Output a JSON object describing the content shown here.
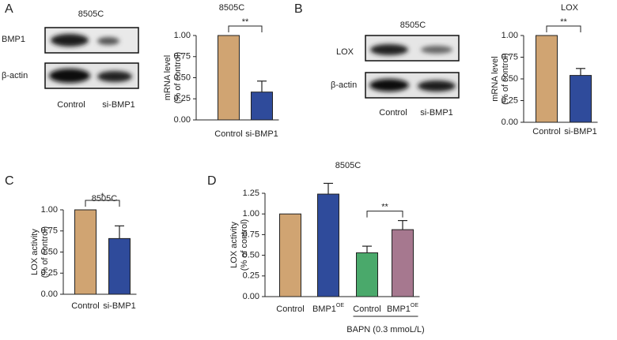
{
  "blots": [
    {
      "title": "8505C",
      "rows": [
        "BMP1",
        "β-actin"
      ],
      "lanes": [
        "Control",
        "si-BMP1"
      ]
    },
    {
      "title": "8505C",
      "rows": [
        "LOX",
        "β-actin"
      ],
      "lanes": [
        "Control",
        "si-BMP1"
      ]
    }
  ],
  "chart_data": [
    {
      "type": "bar",
      "panel": "A",
      "title": "8505C",
      "ylabel": [
        "mRNA level",
        "(% of control)"
      ],
      "categories": [
        "Control",
        "si-BMP1"
      ],
      "values": [
        1.0,
        0.33
      ],
      "errors": [
        0,
        0.13
      ],
      "colors": [
        "#d0a472",
        "#2f4b9b"
      ],
      "ylim": [
        0,
        1.0
      ],
      "yticks": [
        {
          "value": 0,
          "label": "0.00"
        },
        {
          "value": 0.25,
          "label": "0.25"
        },
        {
          "value": 0.5,
          "label": "0.50"
        },
        {
          "value": 0.75,
          "label": "0.75"
        },
        {
          "value": 1.0,
          "label": "1.00"
        }
      ],
      "significance": "**"
    },
    {
      "type": "bar",
      "panel": "B",
      "title": "LOX",
      "ylabel": [
        "mRNA level",
        "(% of control)"
      ],
      "categories": [
        "Control",
        "si-BMP1"
      ],
      "values": [
        1.0,
        0.54
      ],
      "errors": [
        0,
        0.08
      ],
      "colors": [
        "#d0a472",
        "#2f4b9b"
      ],
      "ylim": [
        0,
        1.0
      ],
      "yticks": [
        {
          "value": 0,
          "label": "0.00"
        },
        {
          "value": 0.25,
          "label": "0.25"
        },
        {
          "value": 0.5,
          "label": "0.50"
        },
        {
          "value": 0.75,
          "label": "0.75"
        },
        {
          "value": 1.0,
          "label": "1.00"
        }
      ],
      "significance": "**"
    },
    {
      "type": "bar",
      "panel": "C",
      "title": "8505C",
      "ylabel": [
        "LOX activity",
        "(% of control)"
      ],
      "categories": [
        "Control",
        "si-BMP1"
      ],
      "values": [
        1.0,
        0.66
      ],
      "errors": [
        0,
        0.15
      ],
      "colors": [
        "#d0a472",
        "#2f4b9b"
      ],
      "ylim": [
        0,
        1.0
      ],
      "yticks": [
        {
          "value": 0,
          "label": "0.00"
        },
        {
          "value": 0.25,
          "label": "0.25"
        },
        {
          "value": 0.5,
          "label": "0.50"
        },
        {
          "value": 0.75,
          "label": "0.75"
        },
        {
          "value": 1.0,
          "label": "1.00"
        }
      ],
      "significance": "*"
    },
    {
      "type": "bar",
      "panel": "D",
      "title": "8505C",
      "ylabel": [
        "LOX activity",
        "(% of control)"
      ],
      "categories": [
        "Control",
        "BMP1",
        "Control",
        "BMP1"
      ],
      "category_superscripts": [
        null,
        "OE",
        null,
        "OE"
      ],
      "group_label": "BAPN (0.3 mmoL/L)",
      "values": [
        1.0,
        1.24,
        0.53,
        0.81
      ],
      "errors": [
        0,
        0.13,
        0.08,
        0.11
      ],
      "colors": [
        "#d0a472",
        "#2f4b9b",
        "#4aa96b",
        "#a6788f"
      ],
      "ylim": [
        0,
        1.25
      ],
      "yticks": [
        {
          "value": 0,
          "label": "0.00"
        },
        {
          "value": 0.25,
          "label": "0.25"
        },
        {
          "value": 0.5,
          "label": "0.50"
        },
        {
          "value": 0.75,
          "label": "0.75"
        },
        {
          "value": 1.0,
          "label": "1.00"
        },
        {
          "value": 1.25,
          "label": "1.25"
        }
      ],
      "significance": "**"
    }
  ]
}
